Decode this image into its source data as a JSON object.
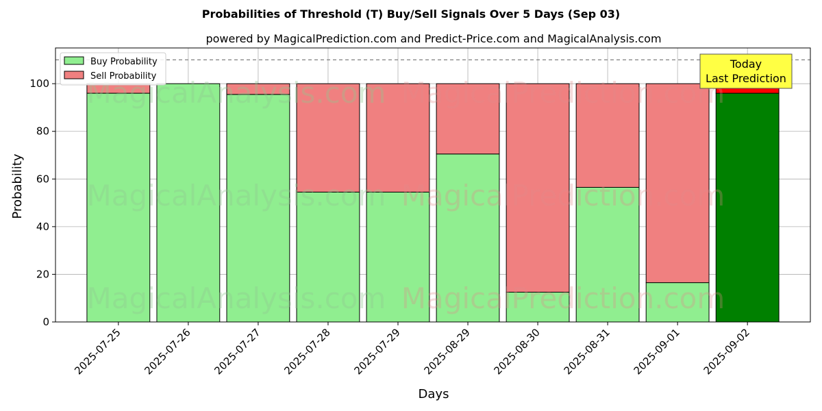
{
  "chart_data": {
    "type": "bar",
    "stacked": true,
    "title": "Probabilities of Threshold (T) Buy/Sell Signals Over 5 Days (Sep 03)",
    "subtitle": "powered by MagicalPrediction.com and Predict-Price.com and MagicalAnalysis.com",
    "xlabel": "Days",
    "ylabel": "Probability",
    "ylim": [
      0,
      115
    ],
    "yticks": [
      0,
      20,
      40,
      60,
      80,
      100
    ],
    "grid": true,
    "legend_position": "top-left",
    "reference_line": 110,
    "categories": [
      "2025-07-25",
      "2025-07-26",
      "2025-07-27",
      "2025-07-28",
      "2025-07-29",
      "2025-08-29",
      "2025-08-30",
      "2025-08-31",
      "2025-09-01",
      "2025-09-02"
    ],
    "series": [
      {
        "name": "Buy Probability",
        "values": [
          96,
          100,
          95.5,
          54.5,
          54.5,
          70.5,
          12.5,
          56.5,
          16.5,
          96
        ],
        "color": "#90ee90",
        "highlight_color": "#008000"
      },
      {
        "name": "Sell Probability",
        "values": [
          4,
          0,
          4.5,
          45.5,
          45.5,
          29.5,
          87.5,
          43.5,
          83.5,
          4
        ],
        "color": "#f08080",
        "highlight_color": "#ff0000"
      }
    ],
    "highlight_index": 9,
    "annotation": {
      "line1": "Today",
      "line2": "Last Prediction",
      "color": "#ffff44"
    },
    "watermarks": [
      "MagicalAnalysis.com",
      "MagicalPrediction.com"
    ]
  }
}
